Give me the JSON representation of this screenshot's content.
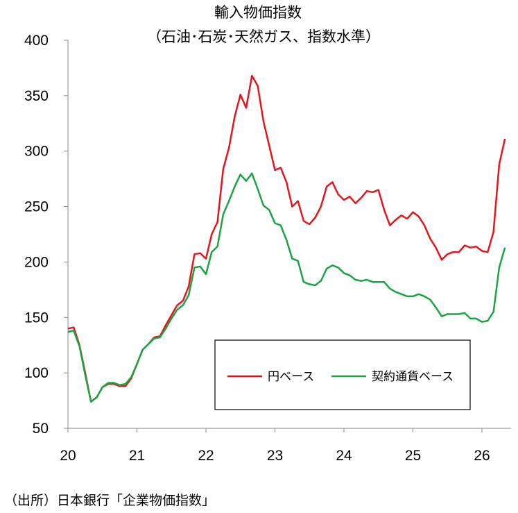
{
  "chart_data": {
    "type": "line",
    "title": "輸入物価指数",
    "subtitle": "（石油･石炭･天然ガス、指数水準）",
    "xlabel": "",
    "ylabel": "",
    "x_range": [
      2020.0,
      2026.42
    ],
    "ylim": [
      50,
      400
    ],
    "y_ticks": [
      50,
      100,
      150,
      200,
      250,
      300,
      350,
      400
    ],
    "x_ticks": [
      {
        "value": 2020,
        "label": "20"
      },
      {
        "value": 2021,
        "label": "21"
      },
      {
        "value": 2022,
        "label": "22"
      },
      {
        "value": 2023,
        "label": "23"
      },
      {
        "value": 2024,
        "label": "24"
      },
      {
        "value": 2025,
        "label": "25"
      },
      {
        "value": 2026,
        "label": "26"
      }
    ],
    "x_start": 2020.0,
    "x_step": 0.08333,
    "grid": false,
    "legend_position": "lower-right",
    "series": [
      {
        "name": "円ベース",
        "color": "#e8141c",
        "values": [
          140,
          141,
          125,
          100,
          74,
          78,
          87,
          90,
          90,
          88,
          88,
          95,
          108,
          121,
          126,
          132,
          133,
          143,
          152,
          161,
          165,
          178,
          207,
          208,
          203,
          225,
          236,
          284,
          303,
          331,
          351,
          339,
          368,
          359,
          327,
          305,
          283,
          285,
          272,
          250,
          255,
          237,
          234,
          240,
          250,
          268,
          272,
          261,
          256,
          259,
          253,
          258,
          264,
          263,
          265,
          247,
          233,
          238,
          242,
          239,
          245,
          241,
          233,
          221,
          213,
          202,
          207,
          209,
          209,
          215,
          213,
          214,
          210,
          209,
          227,
          288,
          311
        ]
      },
      {
        "name": "契約通貨ベース",
        "color": "#1aa442",
        "values": [
          137,
          138,
          124,
          98,
          74,
          78,
          87,
          91,
          91,
          89,
          90,
          96,
          108,
          121,
          126,
          131,
          132,
          140,
          149,
          157,
          161,
          170,
          195,
          196,
          189,
          209,
          214,
          243,
          255,
          268,
          279,
          273,
          280,
          266,
          251,
          247,
          235,
          233,
          220,
          203,
          201,
          182,
          180,
          179,
          183,
          194,
          197,
          195,
          190,
          188,
          184,
          183,
          184,
          182,
          182,
          182,
          176,
          173,
          171,
          169,
          169,
          171,
          169,
          166,
          159,
          151,
          153,
          153,
          153,
          154,
          149,
          149,
          146,
          147,
          155,
          195,
          213
        ]
      }
    ]
  },
  "footer": {
    "source": "（出所）日本銀行「企業物価指数」"
  }
}
